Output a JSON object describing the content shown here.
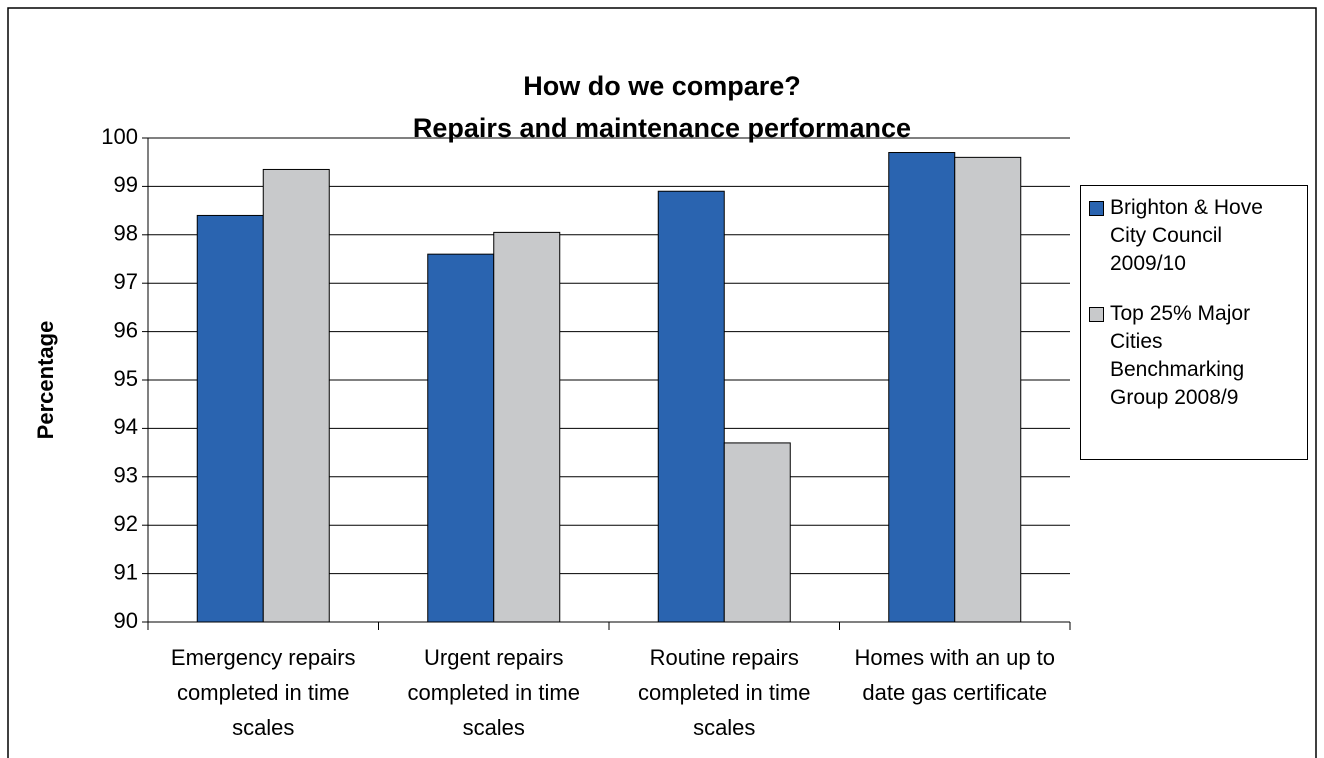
{
  "chart_data": {
    "type": "bar",
    "title": "How do we compare?",
    "subtitle": "Repairs and maintenance performance",
    "y_label": "Percentage",
    "categories": [
      "Emergency repairs completed in time scales",
      "Urgent repairs completed in time scales",
      "Routine repairs completed in time scales",
      "Homes with an up to date gas certificate"
    ],
    "series": [
      {
        "name": "Brighton & Hove City Council 2009/10",
        "color": "#2a64b0",
        "values": [
          98.4,
          97.6,
          98.9,
          99.7
        ]
      },
      {
        "name": "Top 25% Major Cities Benchmarking Group 2008/9",
        "color": "#c8c9cb",
        "values": [
          99.35,
          98.05,
          93.7,
          99.6
        ]
      }
    ],
    "ylim": [
      90,
      100
    ],
    "yticks": [
      90,
      91,
      92,
      93,
      94,
      95,
      96,
      97,
      98,
      99,
      100
    ],
    "grid": true,
    "legend": "right"
  }
}
